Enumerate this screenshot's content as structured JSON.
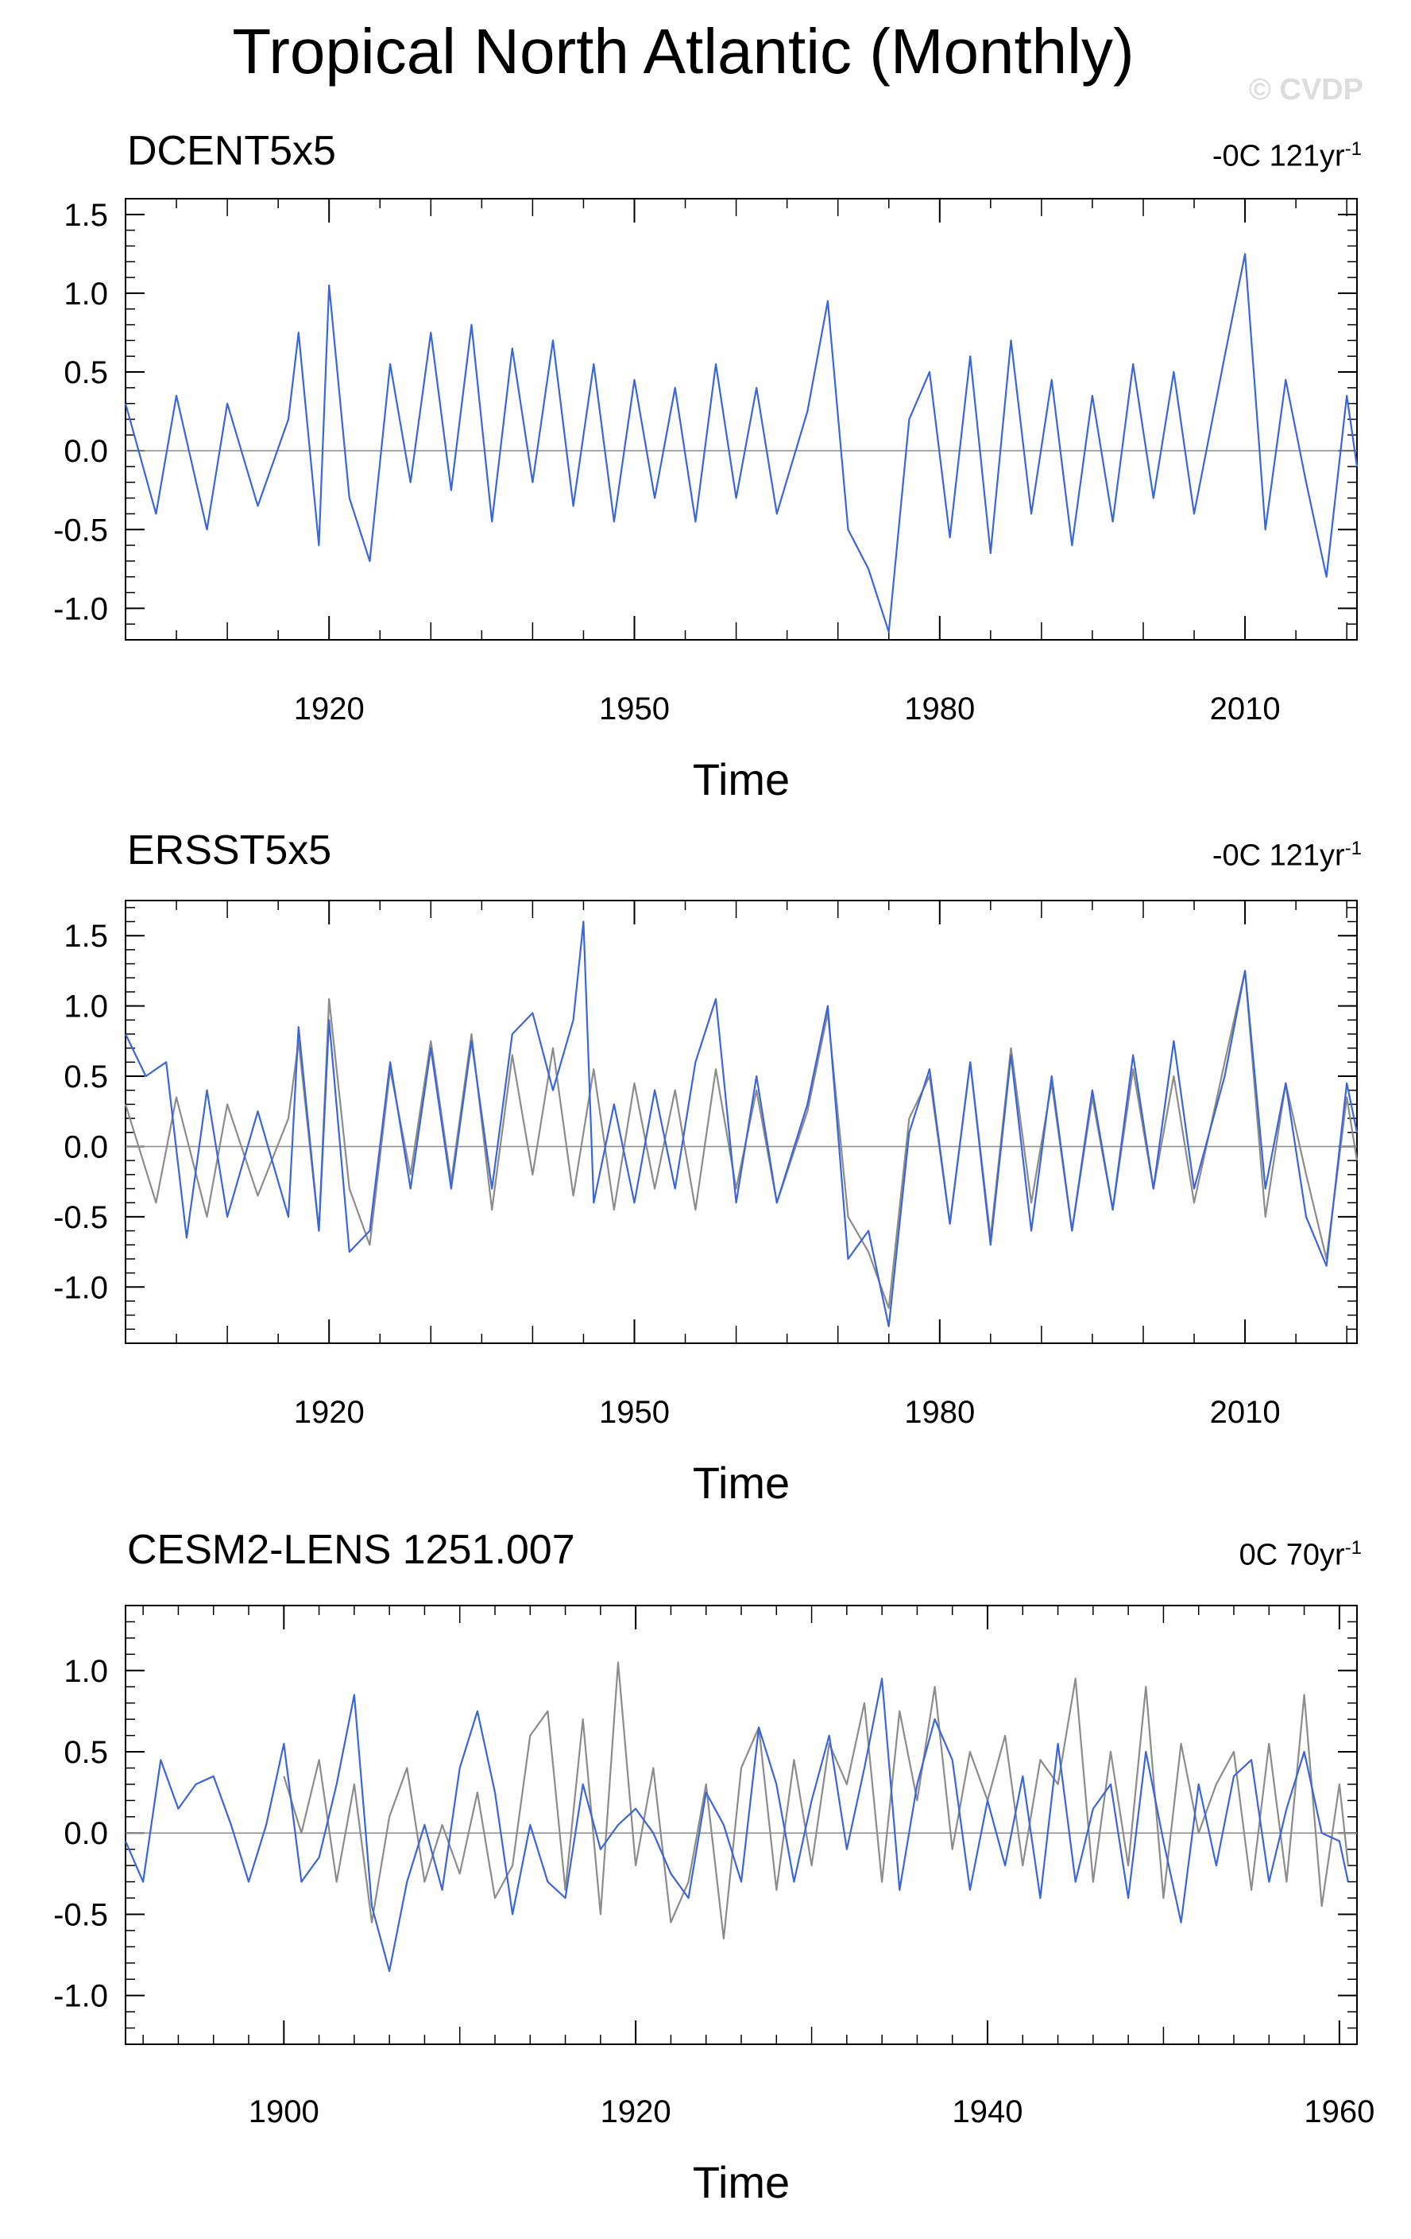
{
  "figure": {
    "title": "Tropical North Atlantic (Monthly)",
    "watermark": "© CVDP"
  },
  "colors": {
    "primary": "#3b66d8",
    "secondary": "#8c8c8c",
    "zero_line": "#8c8c8c"
  },
  "chart_data": [
    {
      "type": "line",
      "title": "DCENT5x5",
      "trend_label": "-0C 121yr",
      "trend_unit_exp": "-1",
      "xlabel": "Time",
      "ylabel": "",
      "xlim": [
        1900,
        2021
      ],
      "ylim": [
        -1.2,
        1.6
      ],
      "x_ticks": [
        1920,
        1950,
        1980,
        2010
      ],
      "y_ticks": [
        "1.5",
        "1.0",
        "0.5",
        "0.0",
        "-0.5",
        "-1.0"
      ],
      "y_tick_values": [
        1.5,
        1.0,
        0.5,
        0.0,
        -0.5,
        -1.0
      ],
      "series": [
        {
          "role": "primary",
          "color": "#3b66d8",
          "x": [
            1900,
            1903,
            1905,
            1908,
            1910,
            1913,
            1916,
            1917,
            1919,
            1920,
            1922,
            1924,
            1926,
            1928,
            1930,
            1932,
            1934,
            1936,
            1938,
            1940,
            1942,
            1944,
            1946,
            1948,
            1950,
            1952,
            1954,
            1956,
            1958,
            1960,
            1962,
            1964,
            1967,
            1969,
            1971,
            1973,
            1975,
            1977,
            1979,
            1981,
            1983,
            1985,
            1987,
            1989,
            1991,
            1993,
            1995,
            1997,
            1999,
            2001,
            2003,
            2005,
            2008,
            2010,
            2012,
            2014,
            2016,
            2018,
            2020,
            2021
          ],
          "y": [
            0.3,
            -0.4,
            0.35,
            -0.5,
            0.3,
            -0.35,
            0.2,
            0.75,
            -0.6,
            1.05,
            -0.3,
            -0.7,
            0.55,
            -0.2,
            0.75,
            -0.25,
            0.8,
            -0.45,
            0.65,
            -0.2,
            0.7,
            -0.35,
            0.55,
            -0.45,
            0.45,
            -0.3,
            0.4,
            -0.45,
            0.55,
            -0.3,
            0.4,
            -0.4,
            0.25,
            0.95,
            -0.5,
            -0.75,
            -1.15,
            0.2,
            0.5,
            -0.55,
            0.6,
            -0.65,
            0.7,
            -0.4,
            0.45,
            -0.6,
            0.35,
            -0.45,
            0.55,
            -0.3,
            0.5,
            -0.4,
            0.6,
            1.25,
            -0.5,
            0.45,
            -0.2,
            -0.8,
            0.35,
            -0.1
          ]
        }
      ]
    },
    {
      "type": "line",
      "title": "ERSST5x5",
      "trend_label": "-0C 121yr",
      "trend_unit_exp": "-1",
      "xlabel": "Time",
      "ylabel": "",
      "xlim": [
        1900,
        2021
      ],
      "ylim": [
        -1.4,
        1.75
      ],
      "x_ticks": [
        1920,
        1950,
        1980,
        2010
      ],
      "y_ticks": [
        "1.5",
        "1.0",
        "0.5",
        "0.0",
        "-0.5",
        "-1.0"
      ],
      "y_tick_values": [
        1.5,
        1.0,
        0.5,
        0.0,
        -0.5,
        -1.0
      ],
      "series": [
        {
          "role": "secondary",
          "color": "#8c8c8c",
          "x": [
            1900,
            1903,
            1905,
            1908,
            1910,
            1913,
            1916,
            1917,
            1919,
            1920,
            1922,
            1924,
            1926,
            1928,
            1930,
            1932,
            1934,
            1936,
            1938,
            1940,
            1942,
            1944,
            1946,
            1948,
            1950,
            1952,
            1954,
            1956,
            1958,
            1960,
            1962,
            1964,
            1967,
            1969,
            1971,
            1973,
            1975,
            1977,
            1979,
            1981,
            1983,
            1985,
            1987,
            1989,
            1991,
            1993,
            1995,
            1997,
            1999,
            2001,
            2003,
            2005,
            2008,
            2010,
            2012,
            2014,
            2016,
            2018,
            2020,
            2021
          ],
          "y": [
            0.3,
            -0.4,
            0.35,
            -0.5,
            0.3,
            -0.35,
            0.2,
            0.75,
            -0.6,
            1.05,
            -0.3,
            -0.7,
            0.55,
            -0.2,
            0.75,
            -0.25,
            0.8,
            -0.45,
            0.65,
            -0.2,
            0.7,
            -0.35,
            0.55,
            -0.45,
            0.45,
            -0.3,
            0.4,
            -0.45,
            0.55,
            -0.3,
            0.4,
            -0.4,
            0.25,
            0.95,
            -0.5,
            -0.75,
            -1.15,
            0.2,
            0.5,
            -0.55,
            0.6,
            -0.65,
            0.7,
            -0.4,
            0.45,
            -0.6,
            0.35,
            -0.45,
            0.55,
            -0.3,
            0.5,
            -0.4,
            0.6,
            1.25,
            -0.5,
            0.45,
            -0.2,
            -0.8,
            0.35,
            -0.1
          ]
        },
        {
          "role": "primary",
          "color": "#3b66d8",
          "x": [
            1900,
            1902,
            1904,
            1906,
            1908,
            1910,
            1913,
            1916,
            1917,
            1919,
            1920,
            1922,
            1924,
            1926,
            1928,
            1930,
            1932,
            1934,
            1936,
            1938,
            1940,
            1942,
            1944,
            1945,
            1946,
            1948,
            1950,
            1952,
            1954,
            1956,
            1958,
            1960,
            1962,
            1964,
            1967,
            1969,
            1971,
            1973,
            1975,
            1977,
            1979,
            1981,
            1983,
            1985,
            1987,
            1989,
            1991,
            1993,
            1995,
            1997,
            1999,
            2001,
            2003,
            2005,
            2008,
            2010,
            2012,
            2014,
            2016,
            2018,
            2020,
            2021
          ],
          "y": [
            0.8,
            0.5,
            0.6,
            -0.65,
            0.4,
            -0.5,
            0.25,
            -0.5,
            0.85,
            -0.6,
            0.9,
            -0.75,
            -0.6,
            0.6,
            -0.3,
            0.7,
            -0.3,
            0.75,
            -0.3,
            0.8,
            0.95,
            0.4,
            0.9,
            1.6,
            -0.4,
            0.3,
            -0.4,
            0.4,
            -0.3,
            0.6,
            1.05,
            -0.4,
            0.5,
            -0.4,
            0.3,
            1.0,
            -0.8,
            -0.6,
            -1.28,
            0.1,
            0.55,
            -0.55,
            0.6,
            -0.7,
            0.65,
            -0.6,
            0.5,
            -0.6,
            0.4,
            -0.45,
            0.65,
            -0.3,
            0.75,
            -0.3,
            0.5,
            1.25,
            -0.3,
            0.45,
            -0.5,
            -0.85,
            0.45,
            0.1
          ]
        }
      ]
    },
    {
      "type": "line",
      "title": "CESM2-LENS 1251.007",
      "trend_label": "0C 70yr",
      "trend_unit_exp": "-1",
      "xlabel": "Time",
      "ylabel": "",
      "xlim": [
        1891,
        1961
      ],
      "ylim": [
        -1.3,
        1.4
      ],
      "x_ticks": [
        1900,
        1920,
        1940,
        1960
      ],
      "y_ticks": [
        "1.0",
        "0.5",
        "0.0",
        "-0.5",
        "-1.0"
      ],
      "y_tick_values": [
        1.0,
        0.5,
        0.0,
        -0.5,
        -1.0
      ],
      "series": [
        {
          "role": "secondary",
          "color": "#8c8c8c",
          "x": [
            1900,
            1901,
            1902,
            1903,
            1904,
            1905,
            1906,
            1907,
            1908,
            1909,
            1910,
            1911,
            1912,
            1913,
            1914,
            1915,
            1916,
            1917,
            1918,
            1919,
            1920,
            1921,
            1922,
            1923,
            1924,
            1925,
            1926,
            1927,
            1928,
            1929,
            1930,
            1931,
            1932,
            1933,
            1934,
            1935,
            1936,
            1937,
            1938,
            1939,
            1940,
            1941,
            1942,
            1943,
            1944,
            1945,
            1946,
            1947,
            1948,
            1949,
            1950,
            1951,
            1952,
            1953,
            1954,
            1955,
            1956,
            1957,
            1958,
            1959,
            1960,
            1960.5
          ],
          "y": [
            0.35,
            0.0,
            0.45,
            -0.3,
            0.3,
            -0.55,
            0.1,
            0.4,
            -0.3,
            0.05,
            -0.25,
            0.25,
            -0.4,
            -0.2,
            0.6,
            0.75,
            -0.35,
            0.7,
            -0.5,
            1.05,
            -0.2,
            0.4,
            -0.55,
            -0.3,
            0.3,
            -0.65,
            0.4,
            0.65,
            -0.35,
            0.45,
            -0.2,
            0.55,
            0.3,
            0.8,
            -0.3,
            0.75,
            0.2,
            0.9,
            -0.1,
            0.5,
            0.2,
            0.6,
            -0.2,
            0.45,
            0.3,
            0.95,
            -0.3,
            0.5,
            -0.2,
            0.9,
            -0.4,
            0.55,
            0.0,
            0.3,
            0.5,
            -0.35,
            0.55,
            -0.3,
            0.85,
            -0.45,
            0.3,
            -0.2
          ]
        },
        {
          "role": "primary",
          "color": "#3b66d8",
          "x": [
            1891,
            1892,
            1893,
            1894,
            1895,
            1896,
            1897,
            1898,
            1899,
            1900,
            1901,
            1902,
            1903,
            1904,
            1905,
            1906,
            1907,
            1908,
            1909,
            1910,
            1911,
            1912,
            1913,
            1914,
            1915,
            1916,
            1917,
            1918,
            1919,
            1920,
            1921,
            1922,
            1923,
            1924,
            1925,
            1926,
            1927,
            1928,
            1929,
            1930,
            1931,
            1932,
            1933,
            1934,
            1935,
            1936,
            1937,
            1938,
            1939,
            1940,
            1941,
            1942,
            1943,
            1944,
            1945,
            1946,
            1947,
            1948,
            1949,
            1950,
            1951,
            1952,
            1953,
            1954,
            1955,
            1956,
            1957,
            1958,
            1959,
            1960,
            1960.5
          ],
          "y": [
            -0.05,
            -0.3,
            0.45,
            0.15,
            0.3,
            0.35,
            0.05,
            -0.3,
            0.05,
            0.55,
            -0.3,
            -0.15,
            0.3,
            0.85,
            -0.45,
            -0.85,
            -0.3,
            0.05,
            -0.35,
            0.4,
            0.75,
            0.25,
            -0.5,
            0.05,
            -0.3,
            -0.4,
            0.3,
            -0.1,
            0.05,
            0.15,
            0.0,
            -0.25,
            -0.4,
            0.25,
            0.05,
            -0.3,
            0.65,
            0.3,
            -0.3,
            0.2,
            0.6,
            -0.1,
            0.4,
            0.95,
            -0.35,
            0.3,
            0.7,
            0.45,
            -0.35,
            0.2,
            -0.2,
            0.35,
            -0.4,
            0.55,
            -0.3,
            0.15,
            0.3,
            -0.4,
            0.5,
            -0.05,
            -0.55,
            0.3,
            -0.2,
            0.35,
            0.45,
            -0.3,
            0.15,
            0.5,
            0.0,
            -0.05,
            -0.3
          ]
        }
      ]
    }
  ]
}
